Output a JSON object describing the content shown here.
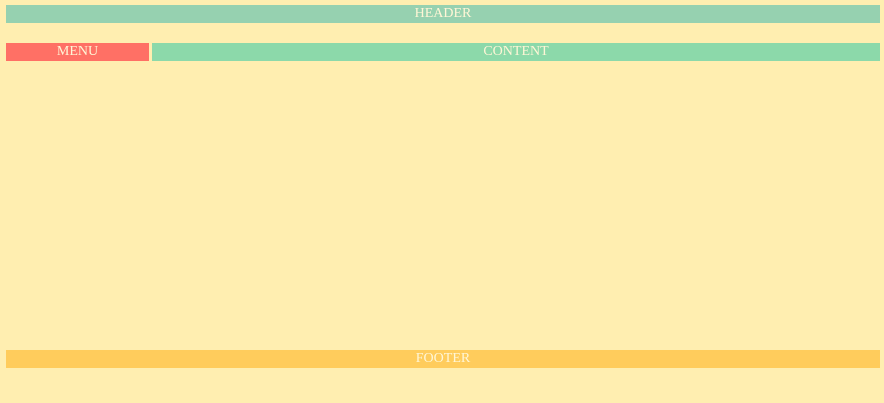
{
  "header": {
    "label": "HEADER"
  },
  "menu": {
    "label": "MENU"
  },
  "content": {
    "label": "CONTENT"
  },
  "footer": {
    "label": "FOOTER"
  },
  "colors": {
    "page_background": "#ffeeb0",
    "header": "#96d1b0",
    "menu": "#ff7065",
    "content": "#8cd9aa",
    "footer": "#ffcc5c",
    "text": "#fff6d6"
  }
}
